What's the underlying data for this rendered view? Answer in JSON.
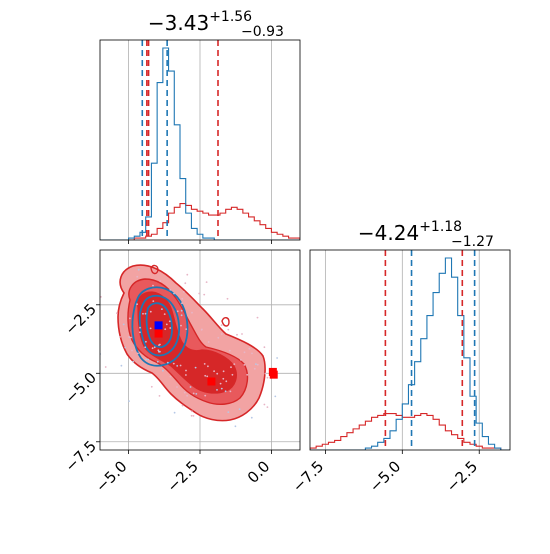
{
  "chart_data": {
    "type": "corner",
    "colors": {
      "red": "#d62728",
      "blue": "#1f77b4",
      "red_light": "#f2a3a3",
      "red_mid": "#e8595c"
    },
    "params": [
      {
        "median": -3.43,
        "plus": "+1.56",
        "minus": "−0.93",
        "median_label": "−3.43"
      },
      {
        "median": -4.24,
        "plus": "+1.18",
        "minus": "−1.27",
        "median_label": "−4.24"
      }
    ],
    "panel_hist_1": {
      "xlim": [
        -6.0,
        1.0
      ],
      "red_quantiles": [
        -4.36,
        -4.3,
        -1.87
      ],
      "blue_quantiles": [
        -4.52,
        -3.65
      ],
      "red_hist": {
        "x_start": -6.0,
        "x_step": 0.2,
        "counts": [
          0,
          0,
          0,
          0,
          0,
          0,
          1,
          1,
          2,
          3,
          6,
          9,
          14,
          17,
          19,
          18,
          16,
          15,
          14,
          13,
          13,
          14,
          16,
          17,
          16,
          14,
          12,
          10,
          8,
          6,
          4,
          3,
          2,
          1,
          1,
          0
        ]
      },
      "blue_hist": {
        "x_start": -6.0,
        "x_step": 0.2,
        "counts": [
          0,
          0,
          0,
          0,
          0,
          1,
          2,
          4,
          12,
          40,
          82,
          100,
          88,
          60,
          32,
          14,
          6,
          3,
          1,
          1,
          0,
          0,
          0,
          0,
          0,
          0,
          0,
          0,
          0,
          0,
          0,
          0,
          0,
          0,
          0,
          0
        ]
      }
    },
    "panel_hist_2": {
      "xlim": [
        -8.0,
        -1.5
      ],
      "xticks": [
        -7.5,
        -5.0,
        -2.5
      ],
      "xticklabels": [
        "−7.5",
        "−5.0",
        "−2.5"
      ],
      "red_quantiles": [
        -5.55,
        -3.05
      ],
      "blue_quantiles": [
        -4.7,
        -2.65
      ],
      "red_hist": {
        "x_start": -8.0,
        "x_step": 0.2,
        "counts": [
          1,
          2,
          3,
          4,
          5,
          7,
          9,
          11,
          13,
          15,
          17,
          18,
          19,
          19,
          18,
          17,
          17,
          18,
          19,
          18,
          16,
          13,
          10,
          8,
          6,
          4,
          3,
          2,
          1,
          1,
          1,
          0,
          0
        ]
      },
      "blue_hist": {
        "x_start": -8.0,
        "x_step": 0.2,
        "counts": [
          0,
          0,
          0,
          0,
          0,
          0,
          0,
          0,
          0,
          1,
          2,
          4,
          6,
          10,
          16,
          24,
          34,
          46,
          58,
          70,
          82,
          92,
          100,
          90,
          70,
          48,
          28,
          14,
          7,
          3,
          1,
          0,
          0
        ]
      }
    },
    "panel_2d": {
      "xlim": [
        -6.0,
        1.0
      ],
      "ylim": [
        -7.8,
        -0.5
      ],
      "xticks": [
        -5.0,
        -2.5,
        0.0
      ],
      "xticklabels": [
        "−5.0",
        "−2.5",
        "0.0"
      ],
      "yticks": [
        -2.5,
        -5.0,
        -7.5
      ],
      "yticklabels": [
        "−2.5",
        "−5.0",
        "−7.5"
      ],
      "red_markers": [
        [
          -3.95,
          -3.3
        ],
        [
          -3.95,
          -3.55
        ],
        [
          -2.1,
          -5.3
        ],
        [
          0.05,
          -4.95
        ],
        [
          0.08,
          -5.05
        ]
      ],
      "blue_markers": [
        [
          -3.95,
          -3.25
        ]
      ]
    }
  }
}
